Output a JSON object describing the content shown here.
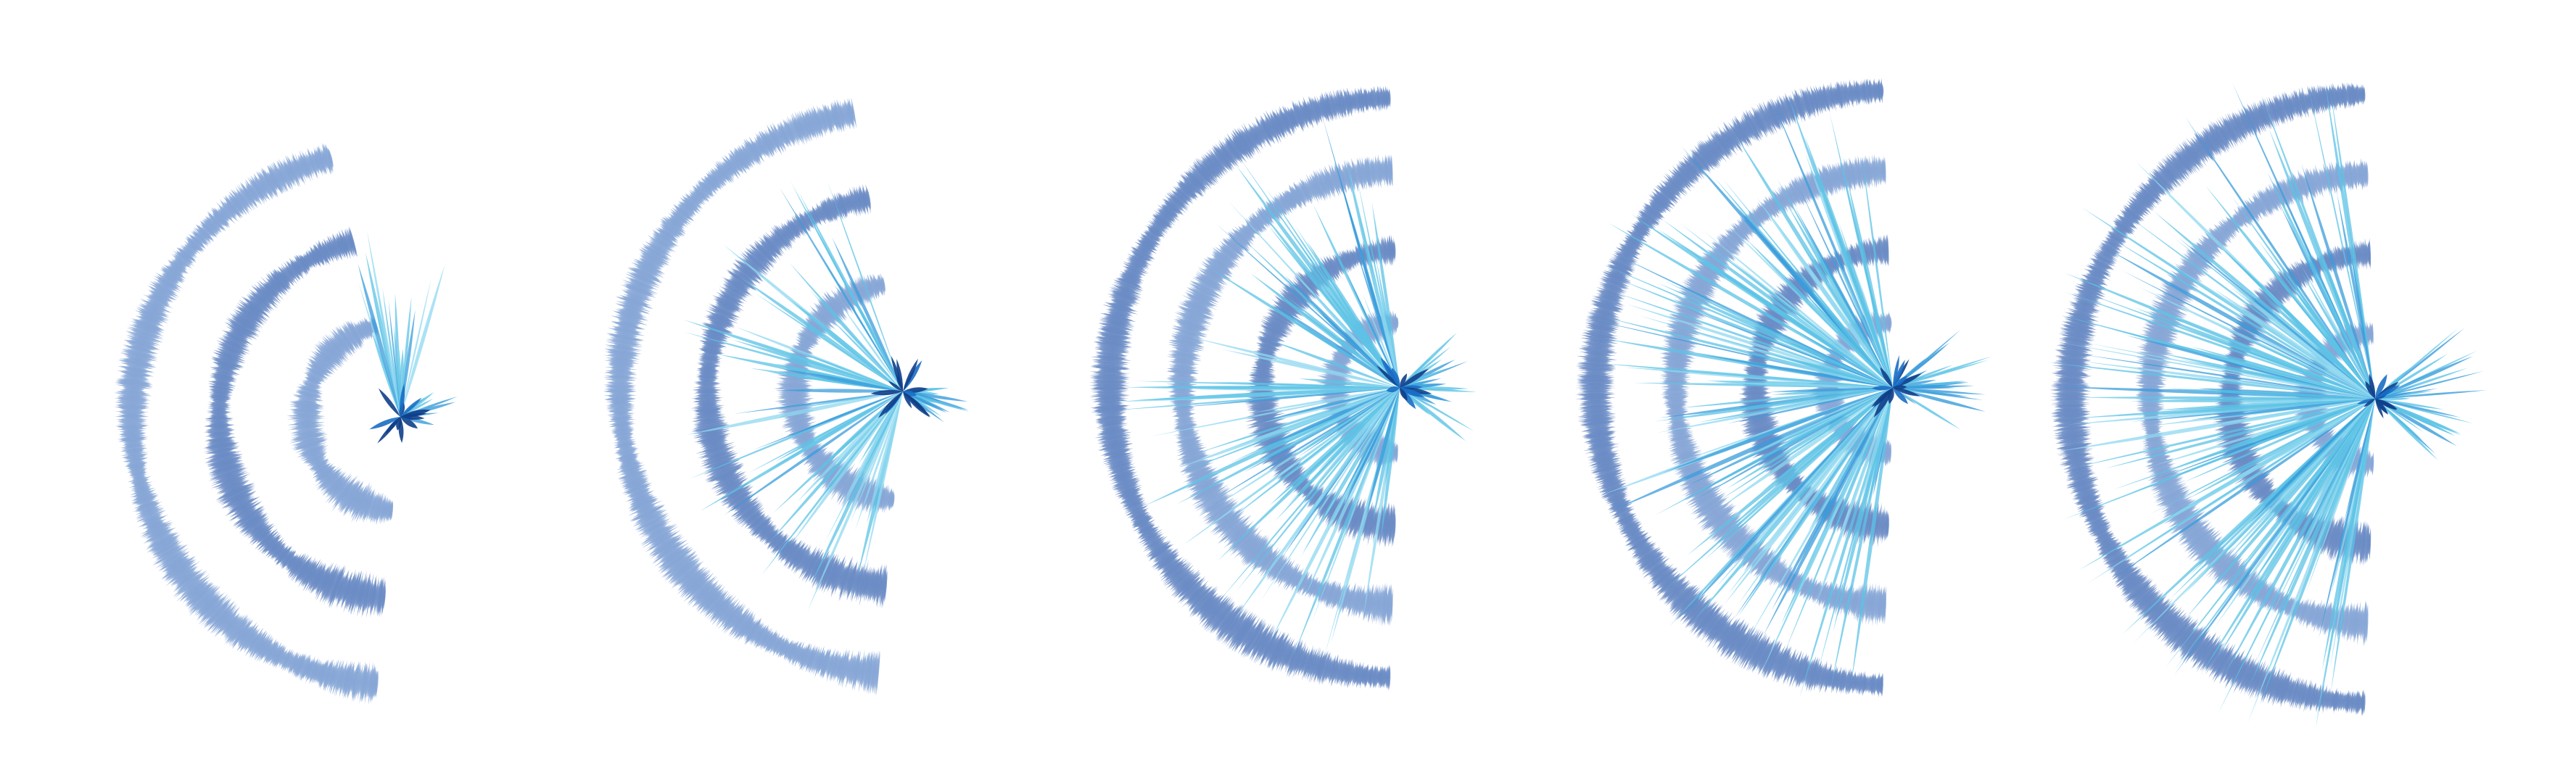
{
  "image": {
    "description_type": "abstract-generative-art",
    "panel_count": 5,
    "background_color": "#ffffff",
    "colors": {
      "ring_steel": "#6a8bc4",
      "ring_steel_light": "#86a6d6",
      "spike_cyan": "#5cc3e6",
      "spike_cyan_light": "#8fd8f0",
      "spike_mid": "#3a9cdb",
      "core_navy": "#0f3f8a",
      "core_blue": "#1a6ec4"
    },
    "panels": [
      {
        "name": "panel-1",
        "ring_count": 3,
        "spike_density": 0.06
      },
      {
        "name": "panel-2",
        "ring_count": 3,
        "spike_density": 0.35
      },
      {
        "name": "panel-3",
        "ring_count": 4,
        "spike_density": 0.65
      },
      {
        "name": "panel-4",
        "ring_count": 4,
        "spike_density": 0.85
      },
      {
        "name": "panel-5",
        "ring_count": 4,
        "spike_density": 1.0
      }
    ]
  }
}
